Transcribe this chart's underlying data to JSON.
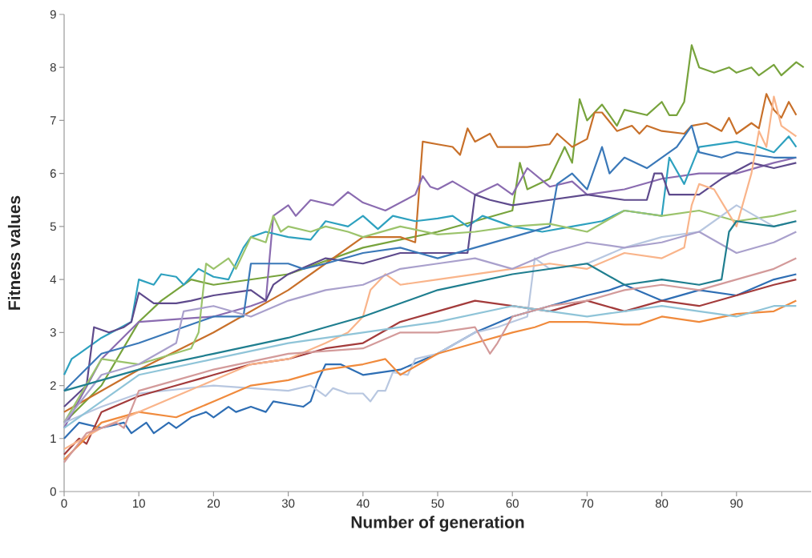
{
  "chart_data": {
    "type": "line",
    "xlabel": "Number of generation",
    "ylabel": "Fitness values",
    "xlim": [
      0,
      100
    ],
    "ylim": [
      0,
      9
    ],
    "xticks": [
      0,
      10,
      20,
      30,
      40,
      50,
      60,
      70,
      80,
      90
    ],
    "yticks": [
      0,
      1,
      2,
      3,
      4,
      5,
      6,
      7,
      8,
      9
    ],
    "marker": "none",
    "line_style": "solid",
    "series": [
      {
        "color": "#77a33c",
        "x": [
          0,
          5,
          10,
          13,
          17,
          20,
          30,
          40,
          50,
          55,
          60,
          61,
          62,
          65,
          67,
          68,
          69,
          70,
          72,
          74,
          75,
          78,
          80,
          81,
          82,
          83,
          84,
          85,
          87,
          89,
          90,
          92,
          93,
          95,
          96,
          98,
          99
        ],
        "values": [
          1.3,
          2.0,
          3.2,
          3.6,
          4.0,
          3.9,
          4.1,
          4.6,
          4.9,
          5.1,
          5.3,
          6.2,
          5.7,
          5.9,
          6.5,
          6.2,
          7.4,
          7.0,
          7.3,
          6.9,
          7.2,
          7.1,
          7.35,
          7.1,
          7.1,
          7.35,
          8.42,
          8.0,
          7.9,
          8.0,
          7.9,
          8.0,
          7.85,
          8.05,
          7.85,
          8.1,
          8.0
        ]
      },
      {
        "color": "#c8702a",
        "x": [
          0,
          10,
          20,
          30,
          35,
          40,
          45,
          47,
          48,
          50,
          52,
          53,
          54,
          55,
          57,
          58,
          62,
          65,
          66,
          68,
          70,
          71,
          72,
          74,
          76,
          77,
          78,
          80,
          83,
          84,
          86,
          88,
          89,
          90,
          92,
          93,
          94,
          95,
          96,
          97,
          98
        ],
        "values": [
          1.5,
          2.3,
          3.0,
          3.8,
          4.3,
          4.8,
          4.8,
          4.7,
          6.6,
          6.55,
          6.5,
          6.35,
          6.85,
          6.6,
          6.75,
          6.5,
          6.5,
          6.55,
          6.75,
          6.5,
          6.65,
          7.15,
          7.15,
          6.8,
          6.9,
          6.75,
          6.9,
          6.8,
          6.75,
          6.9,
          6.95,
          6.8,
          7.05,
          6.75,
          6.95,
          6.85,
          7.5,
          7.2,
          7.05,
          7.35,
          7.1
        ]
      },
      {
        "color": "#8a6bb0",
        "x": [
          0,
          5,
          10,
          20,
          25,
          27,
          28,
          30,
          31,
          33,
          36,
          38,
          40,
          43,
          45,
          47,
          48,
          49,
          50,
          52,
          55,
          58,
          60,
          62,
          65,
          68,
          70,
          75,
          80,
          85,
          90,
          95,
          98
        ],
        "values": [
          1.2,
          2.5,
          3.2,
          3.3,
          3.5,
          3.6,
          5.2,
          5.4,
          5.2,
          5.5,
          5.4,
          5.65,
          5.45,
          5.3,
          5.45,
          5.6,
          5.95,
          5.75,
          5.7,
          5.85,
          5.6,
          5.8,
          5.6,
          6.1,
          5.75,
          5.85,
          5.6,
          5.7,
          5.9,
          6.0,
          6.0,
          6.2,
          6.3
        ]
      },
      {
        "color": "#2ea1bf",
        "x": [
          0,
          1,
          2,
          5,
          9,
          10,
          12,
          13,
          15,
          16,
          18,
          20,
          22,
          24,
          25,
          27,
          30,
          33,
          35,
          38,
          40,
          42,
          44,
          47,
          50,
          52,
          54,
          56,
          60,
          64,
          68,
          72,
          75,
          80,
          81,
          83,
          85,
          90,
          93,
          95,
          97,
          98
        ],
        "values": [
          2.2,
          2.5,
          2.6,
          2.9,
          3.2,
          4.0,
          3.9,
          4.1,
          4.05,
          3.9,
          4.2,
          4.05,
          4.0,
          4.6,
          4.8,
          4.9,
          4.8,
          4.75,
          5.1,
          5.0,
          5.2,
          4.95,
          5.2,
          5.1,
          5.15,
          5.2,
          5.0,
          5.2,
          5.0,
          4.9,
          5.0,
          5.1,
          5.3,
          5.2,
          6.3,
          5.8,
          6.5,
          6.6,
          6.5,
          6.4,
          6.7,
          6.5
        ]
      },
      {
        "color": "#5e4a8c",
        "x": [
          0,
          3,
          4,
          6,
          8,
          9,
          10,
          12,
          15,
          17,
          20,
          25,
          27,
          28,
          30,
          35,
          40,
          45,
          48,
          54,
          55,
          57,
          60,
          65,
          70,
          75,
          78,
          79,
          80,
          81,
          85,
          88,
          92,
          95,
          98
        ],
        "values": [
          1.6,
          2.0,
          3.1,
          3.0,
          3.1,
          3.2,
          3.75,
          3.55,
          3.55,
          3.6,
          3.7,
          3.8,
          3.6,
          3.9,
          4.1,
          4.4,
          4.3,
          4.5,
          4.5,
          4.5,
          5.6,
          5.5,
          5.4,
          5.5,
          5.6,
          5.5,
          5.5,
          6.0,
          6.0,
          5.6,
          5.6,
          5.9,
          6.2,
          6.1,
          6.2
        ]
      },
      {
        "color": "#2e6eb4",
        "x": [
          0,
          2,
          5,
          8,
          9,
          11,
          12,
          14,
          15,
          17,
          19,
          20,
          22,
          23,
          25,
          27,
          28,
          30,
          32,
          33,
          34,
          35,
          37,
          40,
          45,
          50,
          55,
          60,
          65,
          70,
          73,
          75,
          80,
          85,
          90,
          95,
          98
        ],
        "values": [
          1.0,
          1.3,
          1.2,
          1.3,
          1.1,
          1.3,
          1.1,
          1.3,
          1.2,
          1.4,
          1.5,
          1.4,
          1.6,
          1.5,
          1.6,
          1.5,
          1.7,
          1.65,
          1.6,
          1.7,
          2.1,
          2.4,
          2.4,
          2.2,
          2.3,
          2.6,
          3.0,
          3.3,
          3.5,
          3.7,
          3.8,
          3.9,
          3.6,
          3.8,
          3.7,
          4.0,
          4.1
        ]
      },
      {
        "color": "#3a78b8",
        "x": [
          0,
          5,
          10,
          20,
          24,
          25,
          30,
          32,
          35,
          40,
          45,
          50,
          55,
          60,
          65,
          66,
          68,
          70,
          72,
          73,
          75,
          78,
          80,
          82,
          84,
          85,
          88,
          90,
          95,
          98
        ],
        "values": [
          1.9,
          2.6,
          2.8,
          3.3,
          3.3,
          4.3,
          4.3,
          4.2,
          4.3,
          4.5,
          4.6,
          4.4,
          4.6,
          4.8,
          5.0,
          5.8,
          6.0,
          5.7,
          6.5,
          6.0,
          6.3,
          6.1,
          6.3,
          6.5,
          6.9,
          6.4,
          6.3,
          6.4,
          6.3,
          6.3
        ]
      },
      {
        "color": "#9bc36b",
        "x": [
          0,
          5,
          10,
          17,
          18,
          19,
          20,
          22,
          23,
          25,
          27,
          28,
          29,
          30,
          33,
          35,
          38,
          40,
          45,
          50,
          55,
          60,
          65,
          70,
          75,
          80,
          85,
          90,
          95,
          98
        ],
        "values": [
          1.3,
          2.5,
          2.4,
          2.7,
          3.0,
          4.3,
          4.2,
          4.4,
          4.2,
          4.8,
          4.7,
          5.2,
          4.9,
          5.0,
          4.9,
          5.0,
          4.9,
          4.8,
          5.0,
          4.85,
          4.9,
          5.0,
          5.05,
          4.9,
          5.3,
          5.2,
          5.3,
          5.1,
          5.2,
          5.3
        ]
      },
      {
        "color": "#b8c7e0",
        "x": [
          0,
          5,
          10,
          20,
          30,
          33,
          35,
          36,
          38,
          40,
          41,
          42,
          43,
          44,
          46,
          47,
          50,
          55,
          58,
          60,
          62,
          63,
          65,
          70,
          75,
          80,
          85,
          90,
          95,
          98
        ],
        "values": [
          1.3,
          1.6,
          1.85,
          2.0,
          1.9,
          2.0,
          1.8,
          1.95,
          1.85,
          1.85,
          1.7,
          1.9,
          1.9,
          2.25,
          2.2,
          2.5,
          2.6,
          3.0,
          3.1,
          3.2,
          3.3,
          4.4,
          4.2,
          4.3,
          4.6,
          4.8,
          4.9,
          5.4,
          5.0,
          5.1
        ]
      },
      {
        "color": "#a33b3b",
        "x": [
          0,
          2,
          3,
          5,
          10,
          15,
          20,
          25,
          30,
          35,
          40,
          45,
          50,
          55,
          60,
          65,
          70,
          75,
          80,
          85,
          90,
          95,
          98
        ],
        "values": [
          0.7,
          1.0,
          0.9,
          1.5,
          1.8,
          2.0,
          2.2,
          2.4,
          2.5,
          2.7,
          2.8,
          3.2,
          3.4,
          3.6,
          3.5,
          3.4,
          3.6,
          3.4,
          3.6,
          3.5,
          3.7,
          3.9,
          4.0
        ]
      },
      {
        "color": "#f08a3c",
        "x": [
          0,
          5,
          10,
          15,
          20,
          25,
          30,
          35,
          40,
          43,
          45,
          50,
          55,
          60,
          63,
          65,
          70,
          75,
          77,
          80,
          85,
          90,
          95,
          98
        ],
        "values": [
          0.6,
          1.3,
          1.5,
          1.4,
          1.7,
          2.0,
          2.1,
          2.3,
          2.4,
          2.5,
          2.2,
          2.6,
          2.8,
          3.0,
          3.1,
          3.2,
          3.2,
          3.15,
          3.15,
          3.3,
          3.2,
          3.35,
          3.4,
          3.6
        ]
      },
      {
        "color": "#f9b48a",
        "x": [
          0,
          5,
          10,
          15,
          20,
          25,
          30,
          35,
          38,
          40,
          41,
          43,
          45,
          50,
          55,
          60,
          65,
          70,
          75,
          80,
          83,
          84,
          85,
          87,
          90,
          92,
          93,
          94,
          95,
          96,
          98
        ],
        "values": [
          0.8,
          1.2,
          1.5,
          1.8,
          2.1,
          2.4,
          2.5,
          2.8,
          3.0,
          3.3,
          3.8,
          4.1,
          3.9,
          4.0,
          4.1,
          4.2,
          4.3,
          4.2,
          4.5,
          4.4,
          4.6,
          5.4,
          5.8,
          5.7,
          5.0,
          6.0,
          6.8,
          6.5,
          7.45,
          6.9,
          6.7
        ]
      },
      {
        "color": "#8fc4d8",
        "x": [
          0,
          10,
          20,
          30,
          40,
          50,
          60,
          65,
          70,
          75,
          80,
          85,
          90,
          95,
          98
        ],
        "values": [
          1.2,
          2.2,
          2.5,
          2.8,
          3.0,
          3.2,
          3.5,
          3.4,
          3.3,
          3.4,
          3.5,
          3.4,
          3.3,
          3.5,
          3.5
        ]
      },
      {
        "color": "#d39a9a",
        "x": [
          0,
          3,
          7,
          8,
          10,
          15,
          20,
          30,
          40,
          45,
          50,
          55,
          57,
          58,
          60,
          65,
          70,
          75,
          80,
          85,
          90,
          95,
          98
        ],
        "values": [
          0.55,
          1.1,
          1.3,
          1.2,
          1.9,
          2.1,
          2.3,
          2.6,
          2.7,
          3.0,
          3.0,
          3.1,
          2.6,
          2.8,
          3.3,
          3.5,
          3.6,
          3.8,
          3.9,
          3.8,
          4.0,
          4.2,
          4.4
        ]
      },
      {
        "color": "#a9a0cc",
        "x": [
          0,
          5,
          10,
          15,
          16,
          20,
          25,
          30,
          35,
          40,
          45,
          50,
          55,
          60,
          65,
          70,
          75,
          80,
          85,
          90,
          95,
          98
        ],
        "values": [
          1.3,
          2.2,
          2.4,
          2.8,
          3.4,
          3.5,
          3.3,
          3.6,
          3.8,
          3.9,
          4.2,
          4.3,
          4.4,
          4.2,
          4.5,
          4.7,
          4.6,
          4.7,
          4.9,
          4.5,
          4.7,
          4.9
        ]
      },
      {
        "color": "#1f7e8f",
        "x": [
          0,
          5,
          10,
          20,
          30,
          40,
          50,
          60,
          70,
          75,
          80,
          85,
          88,
          89,
          90,
          95,
          98
        ],
        "values": [
          1.9,
          2.1,
          2.3,
          2.6,
          2.9,
          3.3,
          3.8,
          4.1,
          4.3,
          3.9,
          4.0,
          3.9,
          4.0,
          4.9,
          5.1,
          5.0,
          5.1
        ]
      }
    ]
  }
}
